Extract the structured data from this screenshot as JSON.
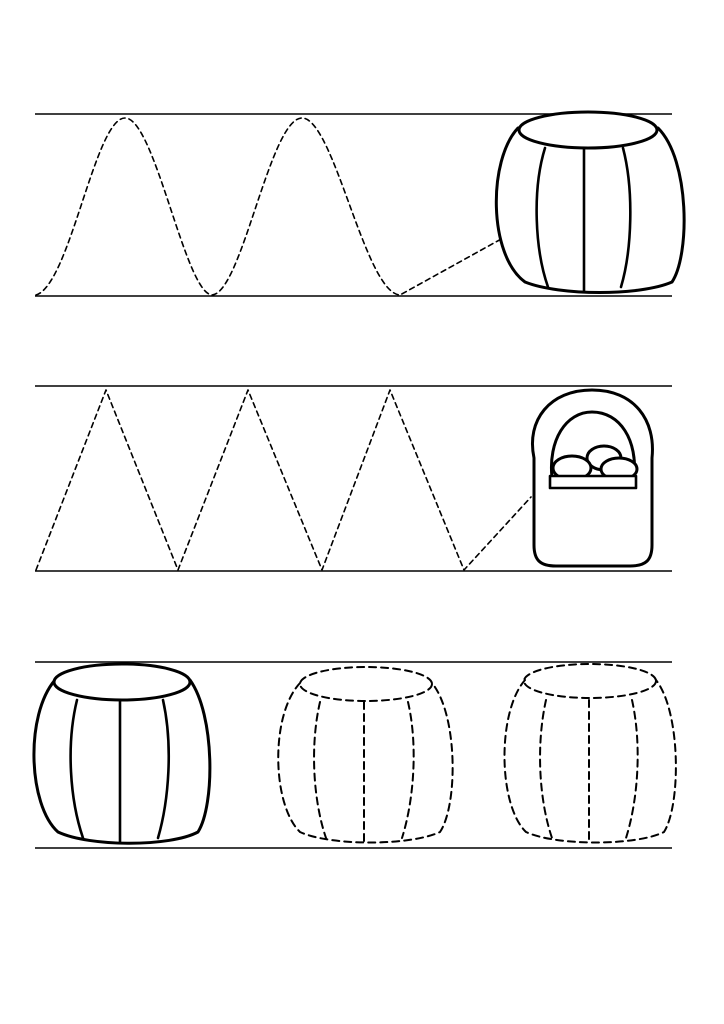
{
  "worksheet": {
    "rows": [
      {
        "name": "wave-row",
        "pattern": "wave",
        "target_icon": "barrel-icon"
      },
      {
        "name": "zigzag-row",
        "pattern": "zigzag",
        "target_icon": "basket-icon"
      },
      {
        "name": "barrel-copy-row",
        "pattern": "barrel-tracing",
        "icons": [
          "barrel-icon",
          "dashed-barrel-icon",
          "dashed-barrel-icon"
        ]
      }
    ],
    "ink_color": "#000000",
    "paper_color": "#ffffff"
  }
}
